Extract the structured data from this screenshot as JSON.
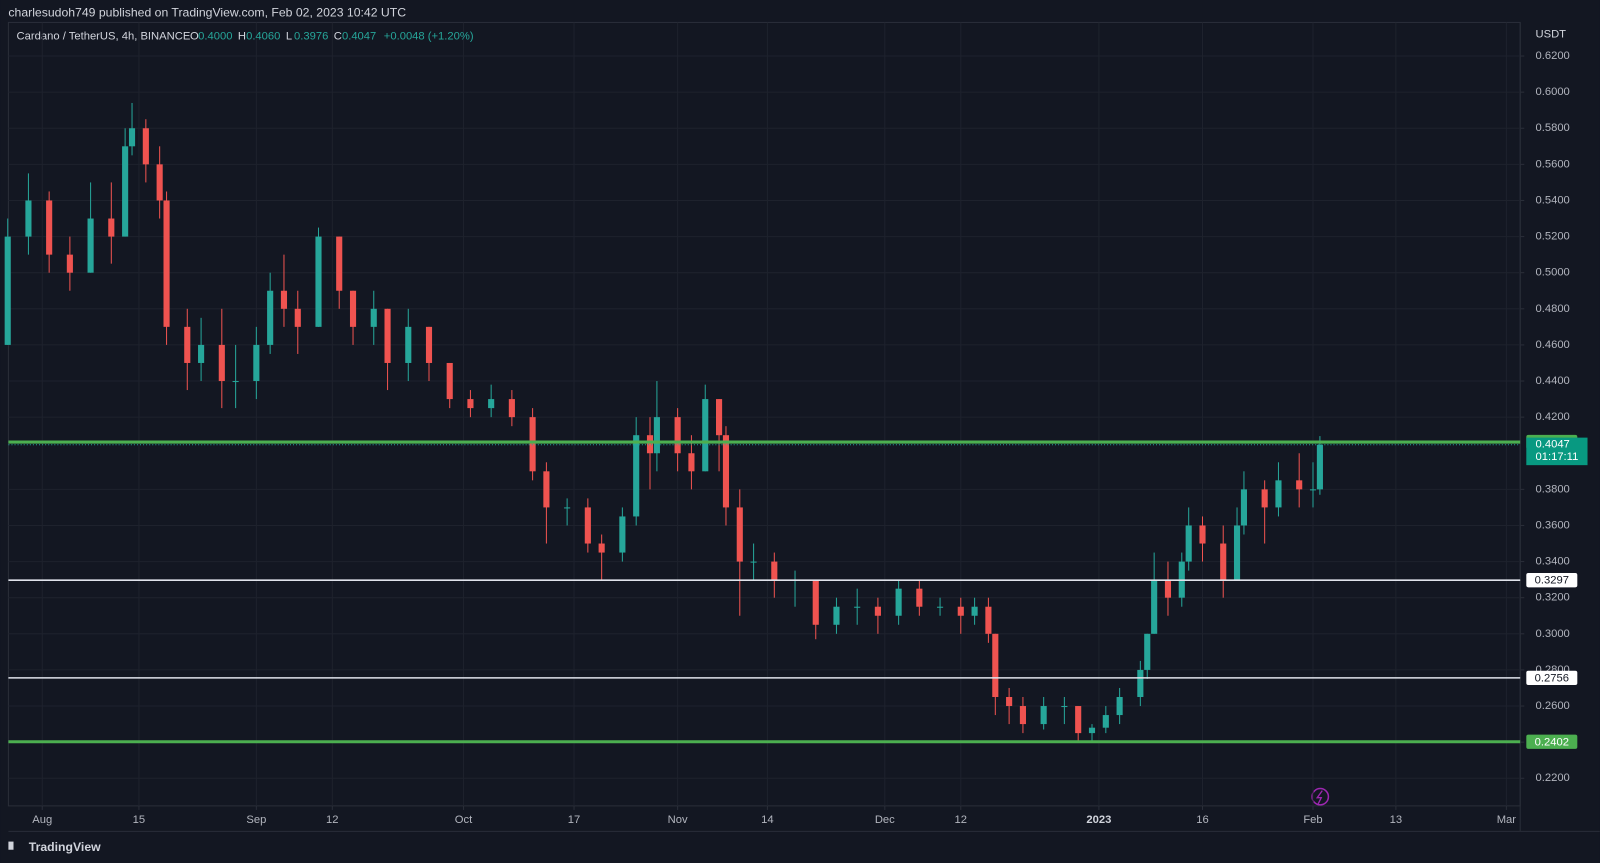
{
  "header": {
    "publisher": "charlesudoh749 published on TradingView.com, Feb 02, 2023 10:42 UTC",
    "footer": "TradingView"
  },
  "chart_data": {
    "type": "candlestick",
    "title": "Cardano / TetherUS, 4h, BINANCE",
    "ohlc_legend": [
      {
        "key": "O",
        "value": "0.4000"
      },
      {
        "key": "H",
        "value": "0.4060"
      },
      {
        "key": "L",
        "value": "0.3976"
      },
      {
        "key": "C",
        "value": "0.4047"
      }
    ],
    "change": "+0.0048 (+1.20%)",
    "currency": "USDT",
    "up_color": "#26a69a",
    "down_color": "#ef5350",
    "xlim": [
      -4.9,
      214
    ],
    "xticks": [
      {
        "value": 0,
        "label": "Aug"
      },
      {
        "value": 14,
        "label": "15"
      },
      {
        "value": 31,
        "label": "Sep"
      },
      {
        "value": 42,
        "label": "12"
      },
      {
        "value": 61,
        "label": "Oct"
      },
      {
        "value": 77,
        "label": "17"
      },
      {
        "value": 92,
        "label": "Nov"
      },
      {
        "value": 105,
        "label": "14"
      },
      {
        "value": 122,
        "label": "Dec"
      },
      {
        "value": 133,
        "label": "12"
      },
      {
        "value": 153,
        "label": "2023"
      },
      {
        "value": 168,
        "label": "16"
      },
      {
        "value": 184,
        "label": "Feb"
      },
      {
        "value": 196,
        "label": "13"
      },
      {
        "value": 212,
        "label": "Mar"
      }
    ],
    "ylim": [
      0.2047,
      0.6386
    ],
    "yticks": [
      {
        "value": 0.22,
        "label": "0.2200"
      },
      {
        "value": 0.24,
        "label": "0.2400"
      },
      {
        "value": 0.26,
        "label": "0.2600"
      },
      {
        "value": 0.28,
        "label": "0.2800"
      },
      {
        "value": 0.3,
        "label": "0.3000"
      },
      {
        "value": 0.32,
        "label": "0.3200"
      },
      {
        "value": 0.34,
        "label": "0.3400"
      },
      {
        "value": 0.36,
        "label": "0.3600"
      },
      {
        "value": 0.38,
        "label": "0.3800"
      },
      {
        "value": 0.42,
        "label": "0.4200"
      },
      {
        "value": 0.44,
        "label": "0.4400"
      },
      {
        "value": 0.46,
        "label": "0.4600"
      },
      {
        "value": 0.48,
        "label": "0.4800"
      },
      {
        "value": 0.5,
        "label": "0.5000"
      },
      {
        "value": 0.52,
        "label": "0.5200"
      },
      {
        "value": 0.54,
        "label": "0.5400"
      },
      {
        "value": 0.56,
        "label": "0.5600"
      },
      {
        "value": 0.58,
        "label": "0.5800"
      },
      {
        "value": 0.6,
        "label": "0.6000"
      },
      {
        "value": 0.62,
        "label": "0.6200"
      }
    ],
    "grid": true,
    "x": [
      -5,
      -2,
      1,
      4,
      7,
      10,
      12,
      13,
      15,
      17,
      18,
      21,
      23,
      26,
      28,
      31,
      33,
      35,
      37,
      40,
      43,
      45,
      48,
      50,
      53,
      56,
      59,
      62,
      65,
      68,
      71,
      73,
      76,
      79,
      81,
      84,
      86,
      88,
      89,
      92,
      94,
      96,
      98,
      99,
      101,
      103,
      106,
      109,
      112,
      115,
      118,
      121,
      124,
      127,
      130,
      133,
      135,
      137,
      138,
      140,
      142,
      145,
      148,
      150,
      152,
      154,
      156,
      159,
      160,
      161,
      163,
      165,
      166,
      168,
      171,
      173,
      174,
      177,
      179,
      182,
      184,
      185
    ],
    "open": [
      0.46,
      0.52,
      0.54,
      0.51,
      0.5,
      0.53,
      0.52,
      0.57,
      0.58,
      0.56,
      0.54,
      0.47,
      0.45,
      0.46,
      0.44,
      0.44,
      0.46,
      0.49,
      0.48,
      0.47,
      0.52,
      0.49,
      0.47,
      0.48,
      0.45,
      0.47,
      0.45,
      0.43,
      0.425,
      0.43,
      0.42,
      0.39,
      0.37,
      0.37,
      0.35,
      0.345,
      0.365,
      0.41,
      0.4,
      0.42,
      0.4,
      0.39,
      0.43,
      0.41,
      0.37,
      0.34,
      0.34,
      0.33,
      0.33,
      0.305,
      0.315,
      0.315,
      0.31,
      0.325,
      0.315,
      0.315,
      0.31,
      0.315,
      0.3,
      0.265,
      0.26,
      0.25,
      0.26,
      0.26,
      0.245,
      0.248,
      0.255,
      0.265,
      0.28,
      0.3,
      0.33,
      0.32,
      0.34,
      0.36,
      0.35,
      0.33,
      0.36,
      0.38,
      0.37,
      0.385,
      0.38,
      0.38
    ],
    "high": [
      0.53,
      0.555,
      0.545,
      0.52,
      0.55,
      0.55,
      0.58,
      0.594,
      0.585,
      0.57,
      0.545,
      0.48,
      0.475,
      0.48,
      0.46,
      0.47,
      0.5,
      0.51,
      0.49,
      0.525,
      0.52,
      0.49,
      0.49,
      0.48,
      0.48,
      0.47,
      0.45,
      0.435,
      0.438,
      0.435,
      0.425,
      0.395,
      0.375,
      0.375,
      0.355,
      0.37,
      0.42,
      0.42,
      0.44,
      0.425,
      0.41,
      0.438,
      0.43,
      0.415,
      0.38,
      0.35,
      0.345,
      0.335,
      0.33,
      0.32,
      0.325,
      0.32,
      0.33,
      0.33,
      0.32,
      0.32,
      0.32,
      0.32,
      0.3,
      0.27,
      0.265,
      0.265,
      0.265,
      0.26,
      0.25,
      0.26,
      0.27,
      0.285,
      0.3,
      0.345,
      0.34,
      0.345,
      0.37,
      0.365,
      0.36,
      0.37,
      0.39,
      0.385,
      0.395,
      0.4,
      0.395,
      0.4095
    ],
    "low": [
      0.46,
      0.51,
      0.5,
      0.49,
      0.5,
      0.505,
      0.52,
      0.565,
      0.55,
      0.53,
      0.46,
      0.435,
      0.44,
      0.425,
      0.425,
      0.43,
      0.455,
      0.47,
      0.455,
      0.47,
      0.48,
      0.46,
      0.46,
      0.435,
      0.44,
      0.44,
      0.425,
      0.42,
      0.42,
      0.415,
      0.385,
      0.35,
      0.36,
      0.345,
      0.33,
      0.34,
      0.36,
      0.38,
      0.39,
      0.39,
      0.38,
      0.39,
      0.39,
      0.36,
      0.31,
      0.33,
      0.32,
      0.315,
      0.297,
      0.3,
      0.305,
      0.3,
      0.305,
      0.31,
      0.31,
      0.3,
      0.305,
      0.295,
      0.255,
      0.25,
      0.245,
      0.247,
      0.25,
      0.24,
      0.24,
      0.245,
      0.25,
      0.26,
      0.275,
      0.3,
      0.31,
      0.315,
      0.335,
      0.34,
      0.32,
      0.33,
      0.355,
      0.35,
      0.365,
      0.37,
      0.37,
      0.377
    ],
    "close": [
      0.52,
      0.54,
      0.51,
      0.5,
      0.53,
      0.52,
      0.57,
      0.58,
      0.56,
      0.54,
      0.47,
      0.45,
      0.46,
      0.44,
      0.44,
      0.46,
      0.49,
      0.48,
      0.47,
      0.52,
      0.49,
      0.47,
      0.48,
      0.45,
      0.47,
      0.45,
      0.43,
      0.425,
      0.43,
      0.42,
      0.39,
      0.37,
      0.37,
      0.35,
      0.345,
      0.365,
      0.41,
      0.4,
      0.42,
      0.4,
      0.39,
      0.43,
      0.41,
      0.37,
      0.34,
      0.34,
      0.33,
      0.33,
      0.305,
      0.315,
      0.315,
      0.31,
      0.325,
      0.315,
      0.315,
      0.31,
      0.315,
      0.3,
      0.265,
      0.26,
      0.25,
      0.26,
      0.26,
      0.245,
      0.248,
      0.255,
      0.265,
      0.28,
      0.3,
      0.33,
      0.32,
      0.34,
      0.36,
      0.35,
      0.33,
      0.36,
      0.38,
      0.37,
      0.385,
      0.38,
      0.38,
      0.4047
    ],
    "levels": [
      {
        "value": 0.4062,
        "color": "#4caf50"
      },
      {
        "value": 0.3297,
        "color": "#e0e3eb"
      },
      {
        "value": 0.2756,
        "color": "#e0e3eb"
      },
      {
        "value": 0.2402,
        "color": "#4caf50"
      }
    ],
    "last_price": 0.4047,
    "countdown": "01:17:11"
  }
}
